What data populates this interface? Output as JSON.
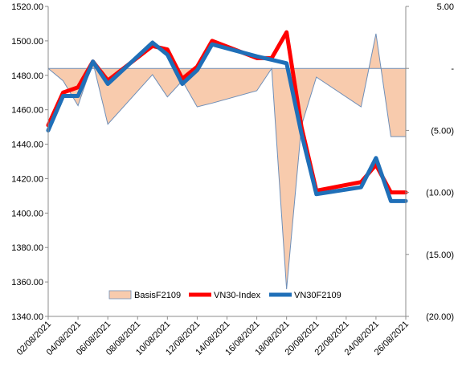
{
  "chart_data": {
    "type": "line",
    "x": [
      "02/08/2021",
      "03/08/2021",
      "04/08/2021",
      "05/08/2021",
      "06/08/2021",
      "09/08/2021",
      "10/08/2021",
      "11/08/2021",
      "12/08/2021",
      "13/08/2021",
      "16/08/2021",
      "17/08/2021",
      "18/08/2021",
      "19/08/2021",
      "20/08/2021",
      "23/08/2021",
      "24/08/2021",
      "25/08/2021",
      "26/08/2021"
    ],
    "x_tick_labels": [
      "02/08/2021",
      "04/08/2021",
      "06/08/2021",
      "08/08/2021",
      "10/08/2021",
      "12/08/2021",
      "14/08/2021",
      "16/08/2021",
      "18/08/2021",
      "20/08/2021",
      "22/08/2021",
      "24/08/2021",
      "26/08/2021"
    ],
    "series": [
      {
        "name": "BasisF2109",
        "axis": "right",
        "kind": "area",
        "color": "#F8CBAD",
        "line_color": "#6F8FB8",
        "values": [
          0.0,
          -1.0,
          -3.0,
          0.5,
          -4.5,
          -0.5,
          -2.3,
          -1.0,
          -3.1,
          -2.8,
          -1.8,
          0.0,
          -17.8,
          -4.6,
          -0.7,
          -3.1,
          2.8,
          -5.5,
          -5.5
        ]
      },
      {
        "name": "VN30-Index",
        "axis": "left",
        "kind": "line",
        "color": "#FF0000",
        "values": [
          1451,
          1470,
          1473,
          1488,
          1477,
          1497,
          1495,
          1478,
          1485,
          1500,
          1490,
          1490,
          1505,
          1450,
          1413,
          1418,
          1428,
          1412,
          1412
        ]
      },
      {
        "name": "VN30F2109",
        "axis": "left",
        "kind": "line",
        "color": "#1F6FB8",
        "values": [
          1448,
          1468,
          1468,
          1488,
          1475,
          1499,
          1492,
          1475,
          1483,
          1498,
          1491,
          1489,
          1487,
          1446,
          1411,
          1415,
          1432,
          1407,
          1407
        ]
      }
    ],
    "x_dates_day": [
      2,
      3,
      4,
      5,
      6,
      9,
      10,
      11,
      12,
      13,
      16,
      17,
      18,
      19,
      20,
      23,
      24,
      25,
      26
    ],
    "y_left": {
      "min": 1340,
      "max": 1520,
      "step": 20,
      "tick_labels": [
        "1340.00",
        "1360.00",
        "1380.00",
        "1400.00",
        "1420.00",
        "1440.00",
        "1460.00",
        "1480.00",
        "1500.00",
        "1520.00"
      ]
    },
    "y_right": {
      "min": -20,
      "max": 5,
      "step": 5,
      "tick_labels": [
        "(20.00)",
        "(15.00)",
        "(10.00)",
        "(5.00)",
        "-",
        "5.00"
      ]
    },
    "legend": {
      "placement": "bottom-center",
      "entries": [
        "BasisF2109",
        "VN30-Index",
        "VN30F2109"
      ]
    },
    "grid": false
  }
}
